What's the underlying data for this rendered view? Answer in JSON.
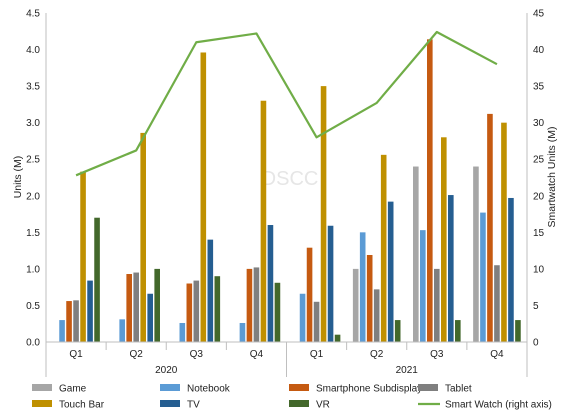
{
  "chart_data": {
    "type": "bar",
    "watermark": "DSCC",
    "years": [
      {
        "label": "2020",
        "quarters": [
          "Q1",
          "Q2",
          "Q3",
          "Q4"
        ]
      },
      {
        "label": "2021",
        "quarters": [
          "Q1",
          "Q2",
          "Q3",
          "Q4"
        ]
      }
    ],
    "categories": [
      "Q1",
      "Q2",
      "Q3",
      "Q4",
      "Q1",
      "Q2",
      "Q3",
      "Q4"
    ],
    "ylabel": "Units (M)",
    "y2label": "Smartwatch Units (M)",
    "ylim": [
      0,
      4.5
    ],
    "y2lim": [
      0,
      45
    ],
    "yticks": [
      "0.0",
      "0.5",
      "1.0",
      "1.5",
      "2.0",
      "2.5",
      "3.0",
      "3.5",
      "4.0",
      "4.5"
    ],
    "y2ticks": [
      "0",
      "5",
      "10",
      "15",
      "20",
      "25",
      "30",
      "35",
      "40",
      "45"
    ],
    "grid": false,
    "legend_position": "bottom",
    "series": [
      {
        "name": "Game",
        "color": "#a6a6a6",
        "values": [
          0,
          0,
          0,
          0,
          0,
          1.0,
          2.4,
          2.4
        ]
      },
      {
        "name": "Notebook",
        "color": "#5b9bd5",
        "values": [
          0.3,
          0.31,
          0.26,
          0.26,
          0.66,
          1.5,
          1.53,
          1.77
        ]
      },
      {
        "name": "Smartphone Subdisplay",
        "color": "#c55a11",
        "values": [
          0.56,
          0.93,
          0.8,
          1.0,
          1.29,
          1.19,
          4.14,
          3.12
        ]
      },
      {
        "name": "Tablet",
        "color": "#7f7f7f",
        "values": [
          0.57,
          0.95,
          0.84,
          1.02,
          0.55,
          0.72,
          1.0,
          1.05
        ]
      },
      {
        "name": "Touch Bar",
        "color": "#bf9000",
        "values": [
          2.33,
          2.86,
          3.96,
          3.3,
          3.5,
          2.56,
          2.8,
          3.0
        ]
      },
      {
        "name": "TV",
        "color": "#255e91",
        "values": [
          0.84,
          0.66,
          1.4,
          1.6,
          1.59,
          1.92,
          2.01,
          1.97
        ]
      },
      {
        "name": "VR",
        "color": "#43682b",
        "values": [
          1.7,
          1.0,
          0.9,
          0.81,
          0.1,
          0.3,
          0.3,
          0.3
        ]
      }
    ],
    "line_series": {
      "name": "Smart Watch (right axis)",
      "color": "#70ad47",
      "axis": "right",
      "values": [
        22.8,
        26.2,
        41.0,
        42.2,
        28.0,
        32.7,
        42.4,
        38.0
      ]
    }
  }
}
